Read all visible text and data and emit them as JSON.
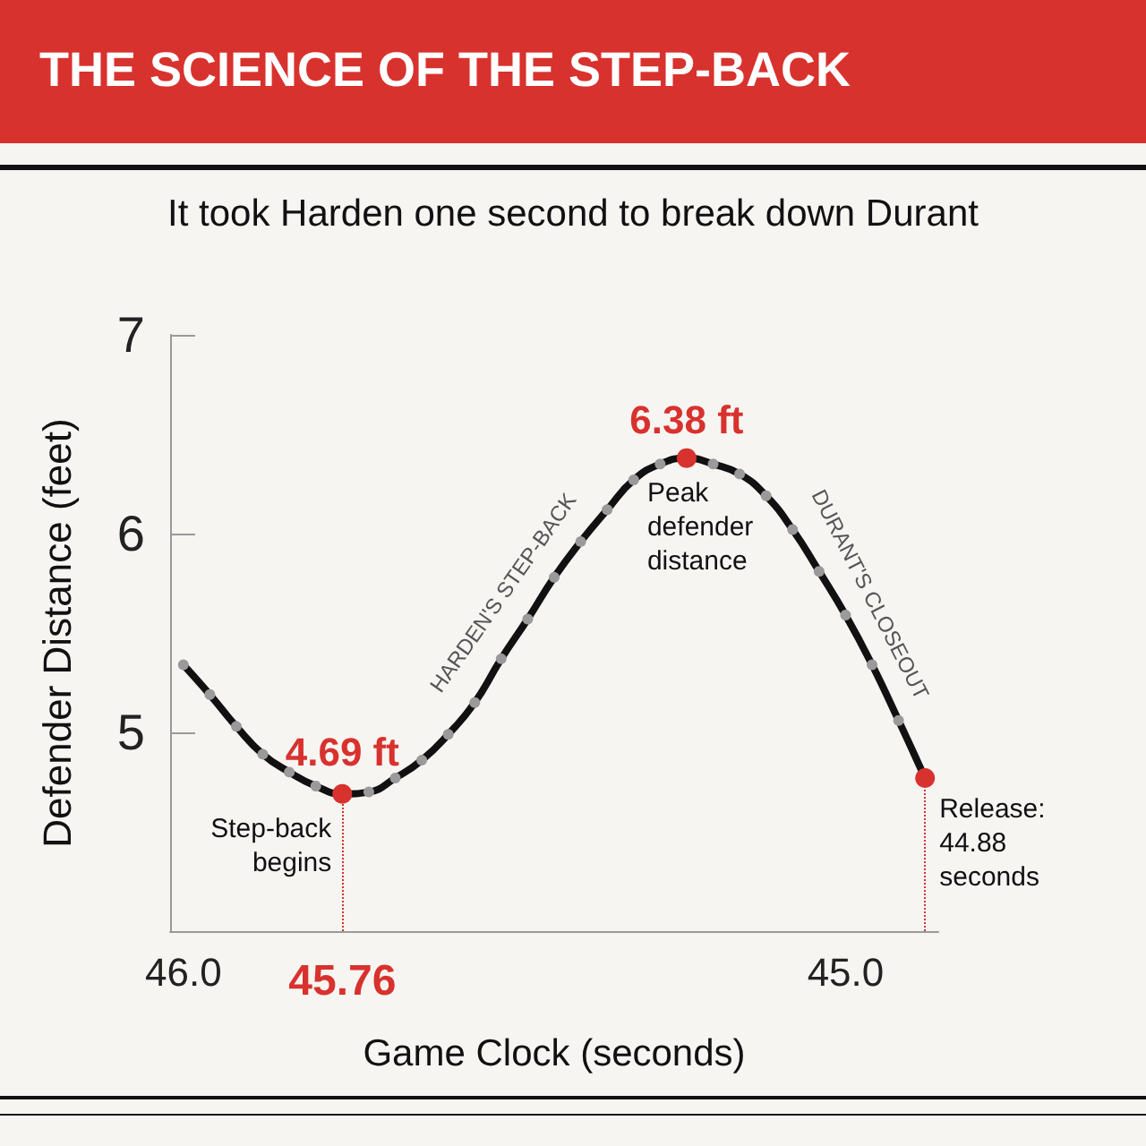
{
  "chart_data": {
    "type": "line",
    "title": "THE SCIENCE OF THE STEP-BACK",
    "subtitle": "It took Harden one second to break down Durant",
    "xlabel": "Game Clock (seconds)",
    "ylabel": "Defender Distance (feet)",
    "x": [
      46.0,
      45.96,
      45.92,
      45.88,
      45.84,
      45.8,
      45.76,
      45.72,
      45.68,
      45.64,
      45.6,
      45.56,
      45.52,
      45.48,
      45.44,
      45.4,
      45.36,
      45.32,
      45.28,
      45.24,
      45.2,
      45.16,
      45.12,
      45.08,
      45.04,
      45.0,
      44.96,
      44.92,
      44.88
    ],
    "series": [
      {
        "color": "#111111",
        "values": [
          5.34,
          5.19,
          5.03,
          4.89,
          4.8,
          4.73,
          4.69,
          4.7,
          4.77,
          4.86,
          4.99,
          5.15,
          5.37,
          5.57,
          5.78,
          5.96,
          6.12,
          6.27,
          6.35,
          6.38,
          6.35,
          6.3,
          6.19,
          6.02,
          5.81,
          5.59,
          5.34,
          5.06,
          4.77
        ],
        "colors": [
          "#9a9a9a",
          "#9a9a9a",
          "#9a9a9a",
          "#9a9a9a",
          "#9a9a9a",
          "#9a9a9a",
          "#d8322e",
          "#9a9a9a",
          "#9a9a9a",
          "#9a9a9a",
          "#9a9a9a",
          "#9a9a9a",
          "#9a9a9a",
          "#9a9a9a",
          "#9a9a9a",
          "#9a9a9a",
          "#9a9a9a",
          "#9a9a9a",
          "#9a9a9a",
          "#d8322e",
          "#9a9a9a",
          "#9a9a9a",
          "#9a9a9a",
          "#9a9a9a",
          "#9a9a9a",
          "#9a9a9a",
          "#9a9a9a",
          "#9a9a9a",
          "#d8322e"
        ]
      }
    ],
    "xlim": [
      46.02,
      44.86
    ],
    "xticks": [
      {
        "value": 46,
        "label": "46.0"
      },
      {
        "value": 45,
        "label": "45.0"
      }
    ],
    "ylim": [
      4.0,
      7
    ],
    "yticks": [
      5,
      6,
      7
    ],
    "ref_lines": [
      {
        "axis": "x",
        "value": 45.76,
        "label": "45.76",
        "color": "#d8322e",
        "line_style": "dotted"
      },
      {
        "axis": "x",
        "value": 44.88,
        "label": null,
        "color": "#d8322e",
        "line_style": "dotted"
      }
    ],
    "annotations": [
      {
        "text": "4.69 ft",
        "x": 45.76,
        "y": 4.69
      },
      {
        "text": "6.38 ft",
        "x": 45.24,
        "y": 6.38
      },
      {
        "text": "Step-back\nbegins",
        "x": 45.76,
        "y": 4.69
      },
      {
        "text": "Peak\ndefender\ndistance",
        "x": 45.24,
        "y": 6.38
      },
      {
        "text": "Release:\n44.88\nseconds",
        "x": 44.88,
        "y": 4.77
      },
      "HARDEN'S STEP-BACK",
      "DURANT'S CLOSEOUT"
    ],
    "grid": false,
    "marker": "circle",
    "line_style": "solid"
  }
}
